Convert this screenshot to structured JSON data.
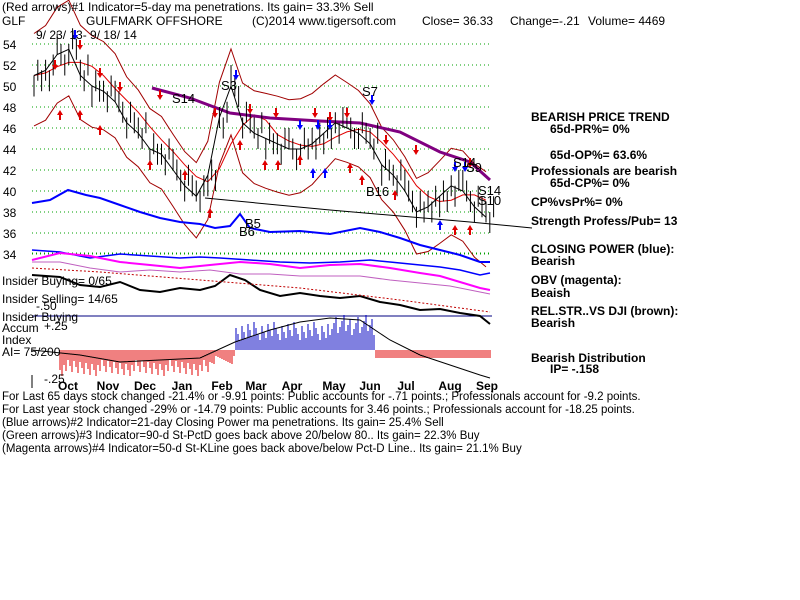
{
  "header": {
    "line1": "(Red arrows)#1 Indicator=5-day ma penetrations. Its gain= 33.3% Sell",
    "ticker": "GLF",
    "company": "GULFMARK OFFSHORE",
    "source": "(C)2014 www.tigersoft.com",
    "close": "Close= 36.33",
    "change": "Change=-.21",
    "volume": "Volume= 4469",
    "date_range": "9/ 23/ 13- 9/ 18/ 14"
  },
  "chart_data": {
    "type": "line",
    "title": "GULFMARK OFFSHORE",
    "y_ticks": [
      54,
      52,
      50,
      48,
      46,
      44,
      42,
      40,
      38,
      36,
      34
    ],
    "ylim": [
      34,
      54
    ],
    "x_ticks": [
      "Oct",
      "Nov",
      "Dec",
      "Jan",
      "Feb",
      "Mar",
      "Apr",
      "May",
      "Jun",
      "Jul",
      "Aug",
      "Sep"
    ],
    "series": [
      {
        "name": "Close",
        "color": "#000000",
        "values": [
          51,
          51.5,
          53,
          53.5,
          51,
          50,
          49.5,
          48.5,
          46.5,
          45.5,
          44,
          43.5,
          42,
          40.5,
          39.5,
          41.5,
          47,
          50,
          46.5,
          45.5,
          45,
          44.5,
          44,
          44,
          44.5,
          45.5,
          46.5,
          46,
          45.5,
          44.5,
          42.5,
          41.5,
          40,
          38,
          38.5,
          39.5,
          40.5,
          40,
          38.5,
          37.5
        ]
      }
    ],
    "signals": [
      "S14",
      "S3",
      "S7",
      "B5",
      "B6",
      "B16",
      "S14",
      "S9",
      "S14",
      "S10"
    ]
  },
  "lower_labels": {
    "insider_buying": "Insider Buying= 0/65",
    "insider_selling": "Insider Selling= 14/65",
    "insider_buying_accum": "Insider Buying",
    "accum": "Accum",
    "index": "Index",
    "ai": "AI= 75/200",
    "plus25": "+.25",
    "minus50": "-.50",
    "minus25": "-.25"
  },
  "right_panel": {
    "trend_title": "BEARISH PRICE TREND",
    "pr": "65d-PR%= 0%",
    "op": "65d-OP%= 63.6%",
    "pros": "Professionals are bearish",
    "cp": "65d-CP%= 0%",
    "cpvspr": "CP%vsPr%= 0%",
    "strength": "Strength Profess/Pub= 13",
    "closing_power": "CLOSING POWER (blue):",
    "closing_power_v": "Bearish",
    "obv": "OBV (magenta):",
    "obv_v": "Beaish",
    "relstr": "REL.STR..VS DJI (brown):",
    "relstr_v": "Bearish",
    "distribution": "Bearish Distribution",
    "ip": "IP= -.158"
  },
  "footer": {
    "l1": "For Last 65 days stock changed -21.4% or -9.91 points: Public accounts for -.71 points.; Professionals account for -9.2 points.",
    "l2": "For Last year stock changed -29% or -14.79 points: Public accounts for 3.46 points.; Professionals account for -18.25 points.",
    "l3": "(Blue arrows)#2 Indicator=21-day Closing Power ma penetrations. Its gain= 25.4% Sell",
    "l4": "(Green arrows)#3 Indicator=90-d St-PctD goes back above 20/below 80.. Its gain= 22.3% Buy",
    "l5": "(Magenta arrows)#4 Indicator=50-d St-KLine goes back above/below Pct-D Line.. Its gain= 21.1% Buy"
  }
}
